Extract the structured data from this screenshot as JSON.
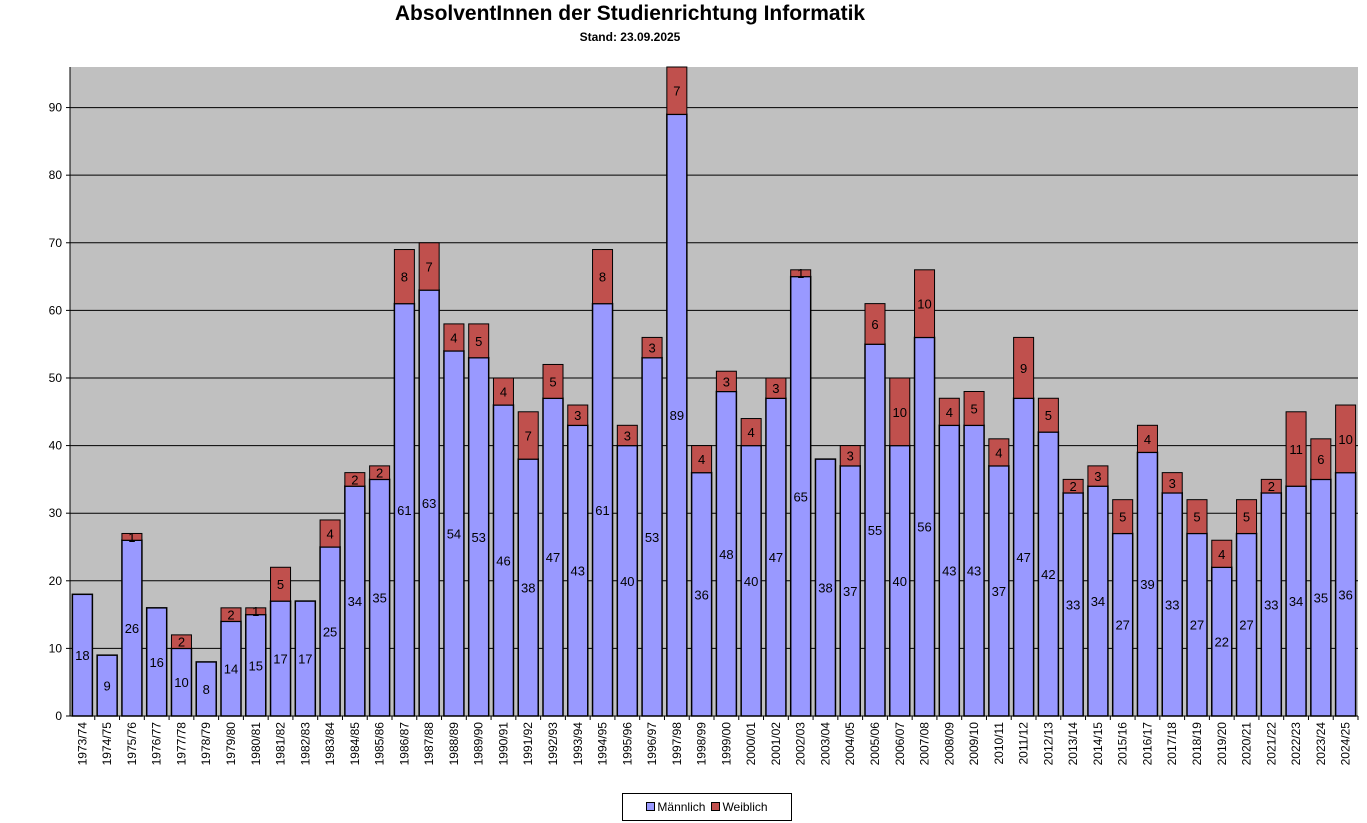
{
  "chart_data": {
    "type": "bar",
    "stacked": true,
    "title": "AbsolventInnen der Studienrichtung Informatik",
    "subtitle": "Stand: 23.09.2025",
    "xlabel": "",
    "ylabel": "",
    "ylim": [
      0,
      96
    ],
    "yticks": [
      0,
      10,
      20,
      30,
      40,
      50,
      60,
      70,
      80,
      90
    ],
    "grid": true,
    "legend_position": "bottom",
    "categories": [
      "1973/74",
      "1974/75",
      "1975/76",
      "1976/77",
      "1977/78",
      "1978/79",
      "1979/80",
      "1980/81",
      "1981/82",
      "1982/83",
      "1983/84",
      "1984/85",
      "1985/86",
      "1986/87",
      "1987/88",
      "1988/89",
      "1989/90",
      "1990/91",
      "1991/92",
      "1992/93",
      "1993/94",
      "1994/95",
      "1995/96",
      "1996/97",
      "1997/98",
      "1998/99",
      "1999/00",
      "2000/01",
      "2001/02",
      "2002/03",
      "2003/04",
      "2004/05",
      "2005/06",
      "2006/07",
      "2007/08",
      "2008/09",
      "2009/10",
      "2010/11",
      "2011/12",
      "2012/13",
      "2013/14",
      "2014/15",
      "2015/16",
      "2016/17",
      "2017/18",
      "2018/19",
      "2019/20",
      "2020/21",
      "2021/22",
      "2022/23",
      "2023/24",
      "2024/25"
    ],
    "series": [
      {
        "name": "Männlich",
        "color": "#9999FF",
        "values": [
          18,
          9,
          26,
          16,
          10,
          8,
          14,
          15,
          17,
          17,
          25,
          34,
          35,
          61,
          63,
          54,
          53,
          46,
          38,
          47,
          43,
          61,
          40,
          53,
          89,
          36,
          48,
          40,
          47,
          65,
          38,
          37,
          55,
          40,
          56,
          43,
          43,
          37,
          47,
          42,
          33,
          34,
          27,
          39,
          33,
          27,
          22,
          27,
          33,
          34,
          35,
          36
        ]
      },
      {
        "name": "Weiblich",
        "color": "#C0504D",
        "values": [
          0,
          0,
          1,
          0,
          2,
          0,
          2,
          1,
          5,
          0,
          4,
          2,
          2,
          8,
          7,
          4,
          5,
          4,
          7,
          5,
          3,
          8,
          3,
          3,
          7,
          4,
          3,
          4,
          3,
          1,
          0,
          3,
          6,
          10,
          10,
          4,
          5,
          4,
          9,
          5,
          2,
          3,
          5,
          4,
          3,
          5,
          4,
          5,
          2,
          11,
          6,
          10
        ]
      }
    ]
  }
}
